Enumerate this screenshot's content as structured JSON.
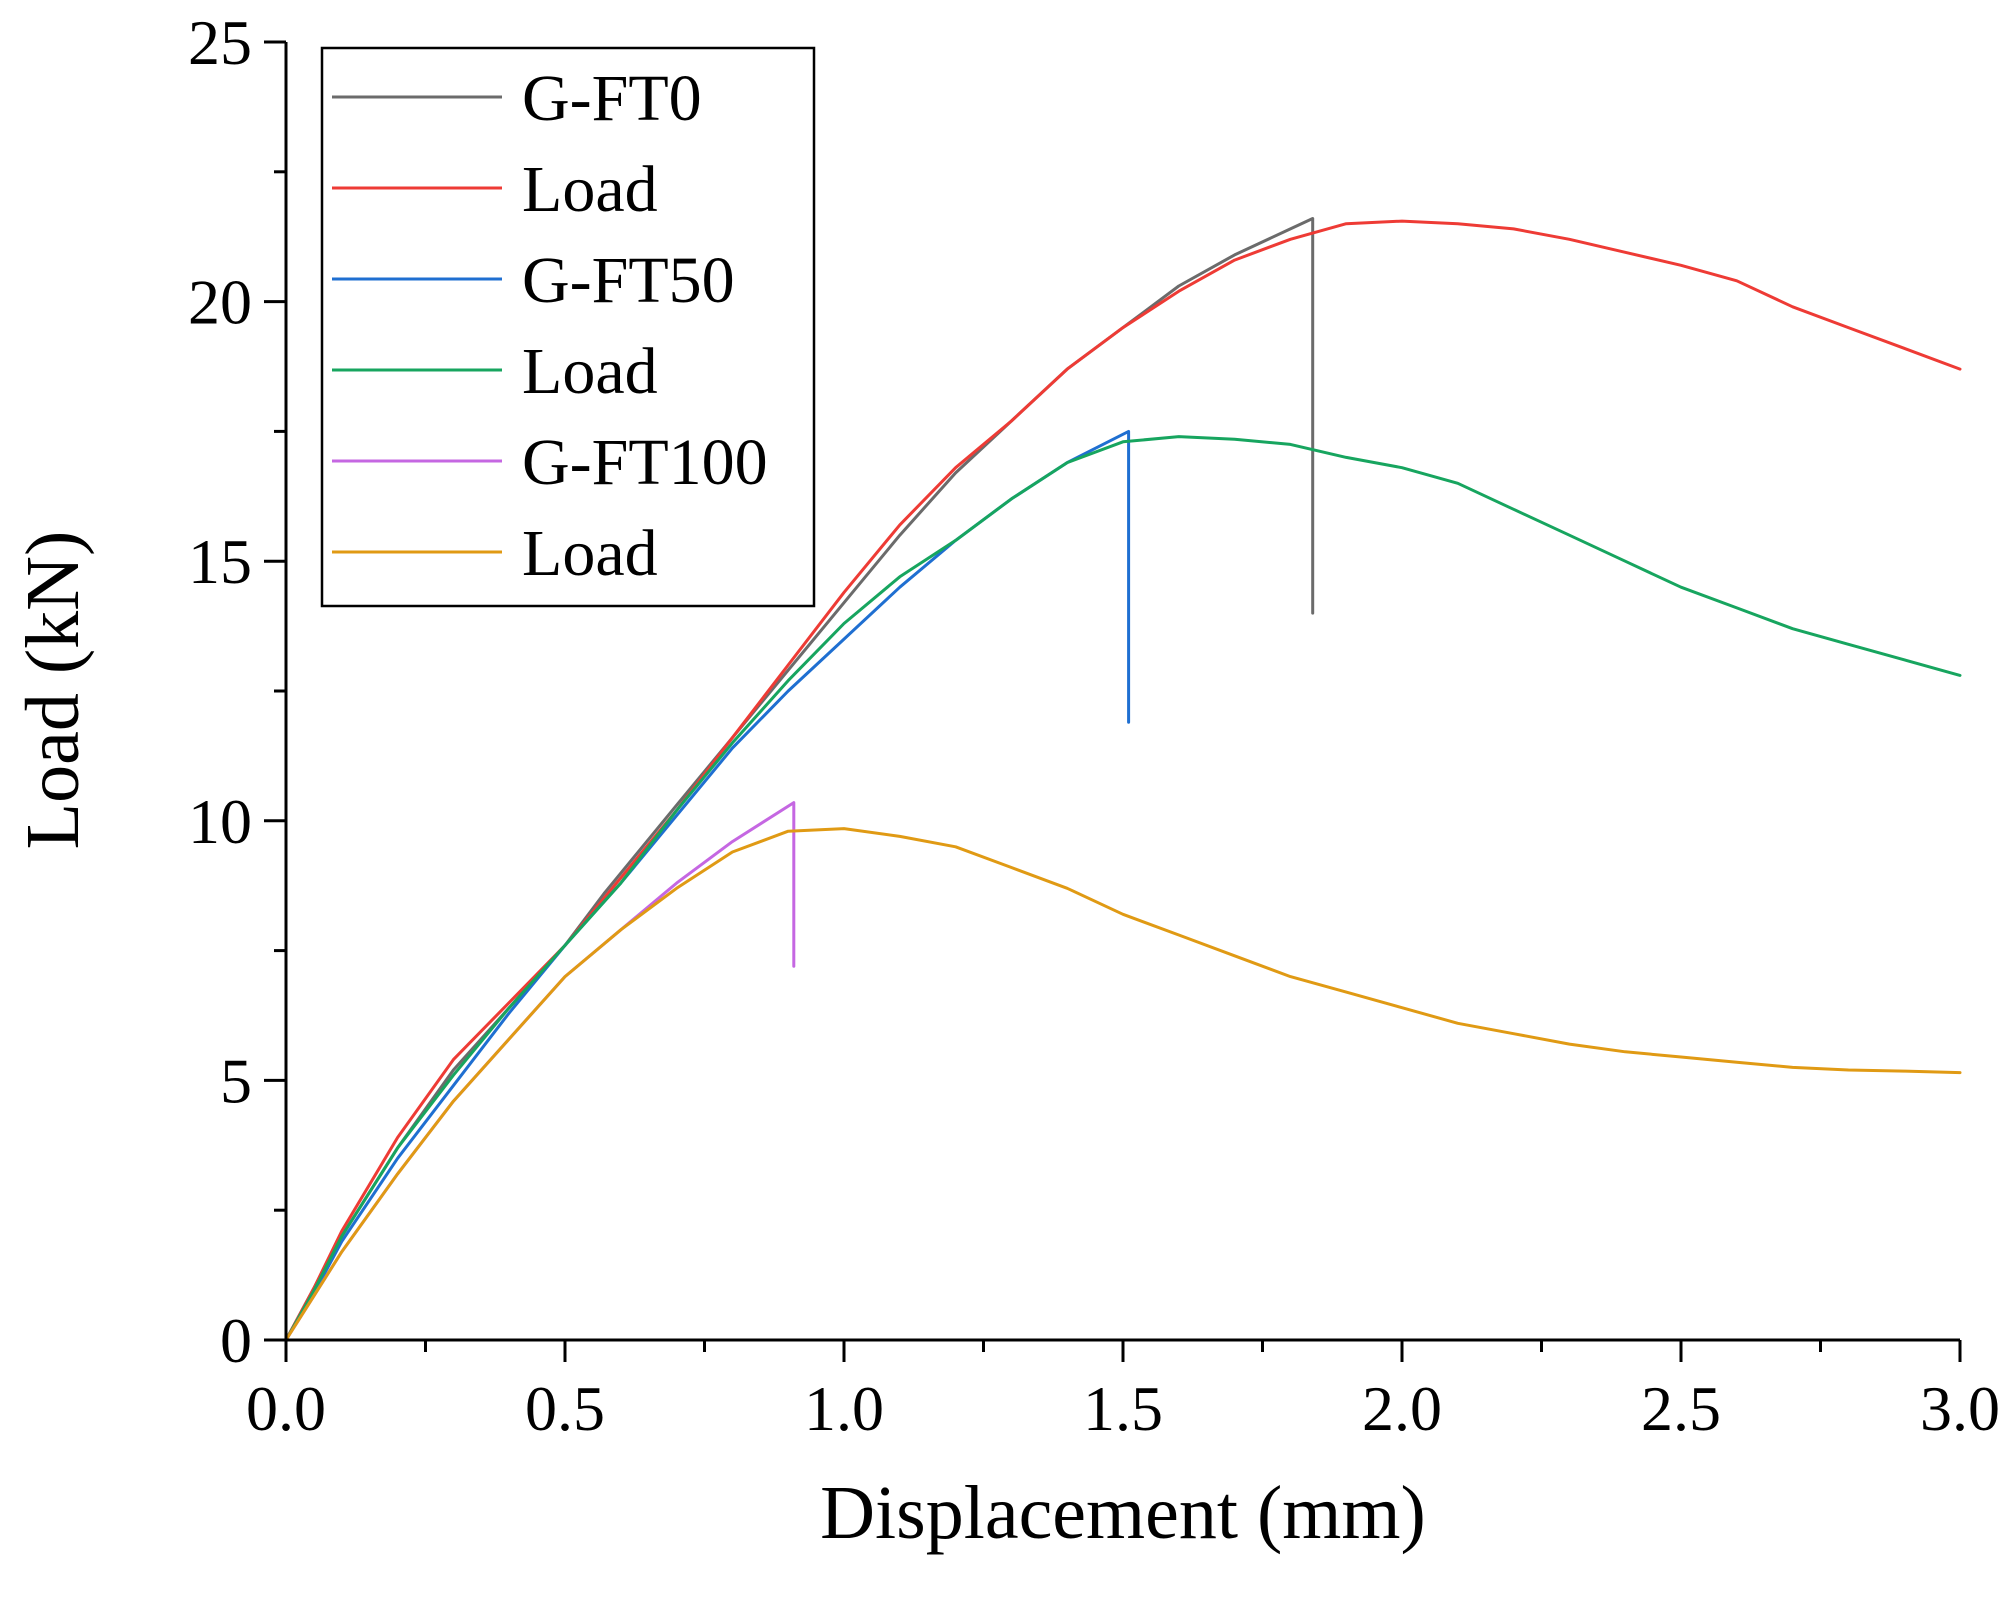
{
  "chart_data": {
    "type": "line",
    "title": "",
    "xlabel": "Displacement (mm)",
    "ylabel": "Load (kN)",
    "xlim": [
      0,
      3.0
    ],
    "ylim": [
      0,
      25
    ],
    "xticks": [
      "0.0",
      "0.5",
      "1.0",
      "1.5",
      "2.0",
      "2.5",
      "3.0"
    ],
    "yticks": [
      "0",
      "5",
      "10",
      "15",
      "20",
      "25"
    ],
    "legend_position": "top-left",
    "series": [
      {
        "name": "G-FT0",
        "color": "#6b6b6b",
        "x": [
          0,
          0.05,
          0.1,
          0.2,
          0.3,
          0.4,
          0.5,
          0.57,
          0.7,
          0.8,
          0.9,
          1.0,
          1.1,
          1.2,
          1.3,
          1.4,
          1.5,
          1.6,
          1.7,
          1.8,
          1.84,
          1.84
        ],
        "y": [
          0,
          1.0,
          2.0,
          3.7,
          5.2,
          6.4,
          7.6,
          8.6,
          10.3,
          11.6,
          12.9,
          14.2,
          15.5,
          16.7,
          17.7,
          18.7,
          19.5,
          20.3,
          20.9,
          21.4,
          21.6,
          14.0
        ]
      },
      {
        "name": "Load",
        "color": "#ee3b35",
        "x": [
          0,
          0.05,
          0.1,
          0.2,
          0.3,
          0.4,
          0.5,
          0.6,
          0.7,
          0.8,
          0.9,
          1.0,
          1.1,
          1.2,
          1.3,
          1.4,
          1.5,
          1.6,
          1.7,
          1.8,
          1.9,
          2.0,
          2.1,
          2.2,
          2.3,
          2.4,
          2.5,
          2.6,
          2.7,
          2.8,
          2.9,
          3.0
        ],
        "y": [
          0,
          1.0,
          2.1,
          3.9,
          5.4,
          6.5,
          7.6,
          8.9,
          10.2,
          11.6,
          13.0,
          14.4,
          15.7,
          16.8,
          17.7,
          18.7,
          19.5,
          20.2,
          20.8,
          21.2,
          21.5,
          21.55,
          21.5,
          21.4,
          21.2,
          20.95,
          20.7,
          20.4,
          19.9,
          19.5,
          19.1,
          18.7
        ]
      },
      {
        "name": "G-FT50",
        "color": "#1f6fd1",
        "x": [
          0,
          0.05,
          0.1,
          0.2,
          0.3,
          0.4,
          0.5,
          0.6,
          0.7,
          0.8,
          0.9,
          1.0,
          1.1,
          1.2,
          1.3,
          1.4,
          1.51,
          1.51
        ],
        "y": [
          0,
          0.9,
          1.9,
          3.5,
          4.9,
          6.3,
          7.6,
          8.8,
          10.1,
          11.4,
          12.5,
          13.5,
          14.5,
          15.4,
          16.2,
          16.9,
          17.5,
          11.9
        ]
      },
      {
        "name": "Load",
        "color": "#17a55f",
        "x": [
          0,
          0.05,
          0.1,
          0.2,
          0.3,
          0.4,
          0.5,
          0.6,
          0.7,
          0.8,
          0.9,
          1.0,
          1.1,
          1.2,
          1.3,
          1.4,
          1.5,
          1.6,
          1.7,
          1.8,
          1.9,
          2.0,
          2.1,
          2.2,
          2.3,
          2.4,
          2.5,
          2.6,
          2.7,
          2.8,
          2.9,
          3.0
        ],
        "y": [
          0,
          0.95,
          2.0,
          3.7,
          5.1,
          6.4,
          7.6,
          8.8,
          10.2,
          11.5,
          12.7,
          13.8,
          14.7,
          15.4,
          16.2,
          16.9,
          17.3,
          17.4,
          17.35,
          17.25,
          17.0,
          16.8,
          16.5,
          16.0,
          15.5,
          15.0,
          14.5,
          14.1,
          13.7,
          13.4,
          13.1,
          12.8
        ]
      },
      {
        "name": "G-FT100",
        "color": "#c567e2",
        "x": [
          0,
          0.05,
          0.1,
          0.2,
          0.3,
          0.4,
          0.5,
          0.6,
          0.7,
          0.8,
          0.91,
          0.91
        ],
        "y": [
          0,
          0.85,
          1.7,
          3.2,
          4.6,
          5.8,
          7.0,
          7.9,
          8.8,
          9.6,
          10.35,
          7.2
        ]
      },
      {
        "name": "Load",
        "color": "#e09a14",
        "x": [
          0,
          0.05,
          0.1,
          0.2,
          0.3,
          0.4,
          0.5,
          0.6,
          0.7,
          0.8,
          0.9,
          1.0,
          1.1,
          1.2,
          1.3,
          1.4,
          1.5,
          1.6,
          1.7,
          1.8,
          1.9,
          2.0,
          2.1,
          2.2,
          2.3,
          2.4,
          2.5,
          2.6,
          2.7,
          2.8,
          2.9,
          3.0
        ],
        "y": [
          0,
          0.85,
          1.7,
          3.2,
          4.6,
          5.8,
          7.0,
          7.9,
          8.7,
          9.4,
          9.8,
          9.85,
          9.7,
          9.5,
          9.1,
          8.7,
          8.2,
          7.8,
          7.4,
          7.0,
          6.7,
          6.4,
          6.1,
          5.9,
          5.7,
          5.55,
          5.45,
          5.35,
          5.25,
          5.2,
          5.18,
          5.15
        ]
      }
    ]
  }
}
